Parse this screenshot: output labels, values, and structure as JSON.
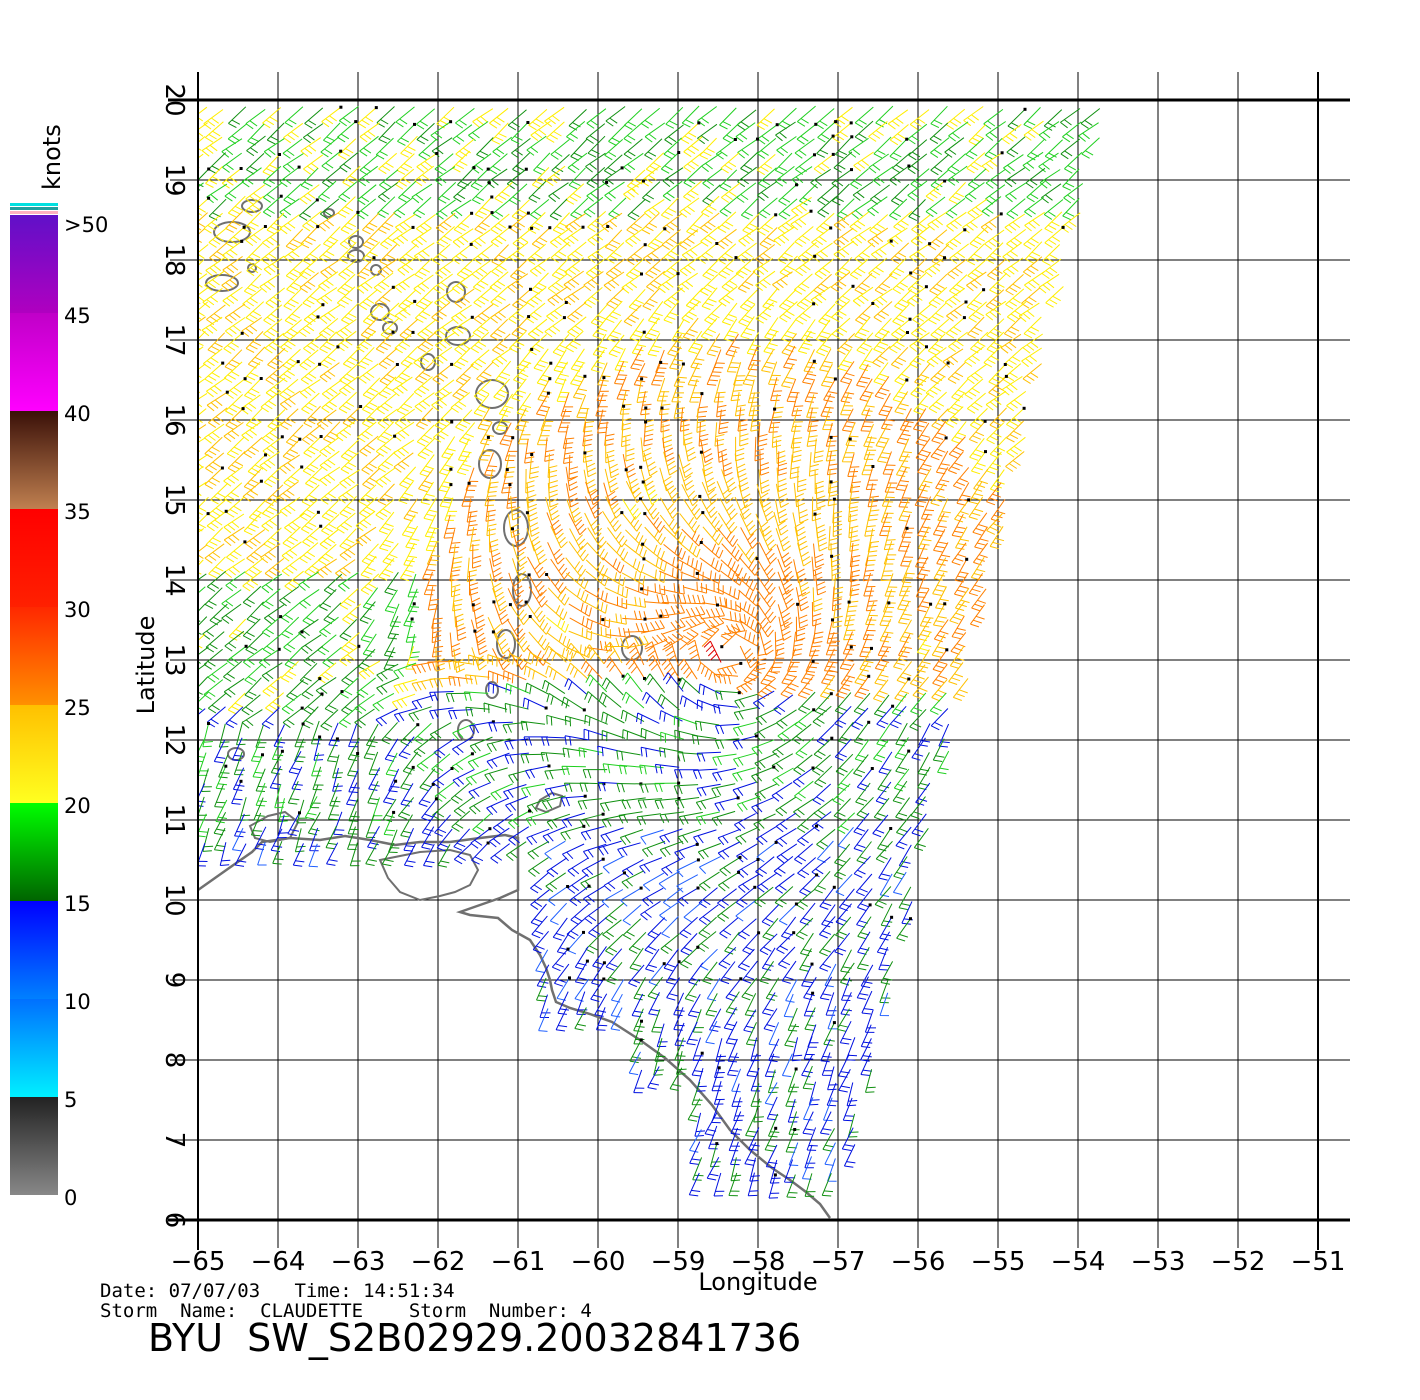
{
  "legend": {
    "unit": "knots",
    "labels": [
      "0",
      "5",
      "10",
      "15",
      "20",
      "25",
      "30",
      "35",
      "40",
      "45",
      ">50"
    ],
    "bands": [
      {
        "from": 0,
        "to": 5,
        "c1": "#888888",
        "c2": "#222222"
      },
      {
        "from": 5,
        "to": 10,
        "c1": "#00f0ff",
        "c2": "#0070ff"
      },
      {
        "from": 10,
        "to": 15,
        "c1": "#0080ff",
        "c2": "#0000ff"
      },
      {
        "from": 15,
        "to": 20,
        "c1": "#006400",
        "c2": "#00ff00"
      },
      {
        "from": 20,
        "to": 25,
        "c1": "#ffff20",
        "c2": "#ffc000"
      },
      {
        "from": 25,
        "to": 30,
        "c1": "#ff9000",
        "c2": "#ff2800"
      },
      {
        "from": 30,
        "to": 35,
        "c1": "#ff2000",
        "c2": "#ff0000"
      },
      {
        "from": 35,
        "to": 40,
        "c1": "#c08050",
        "c2": "#3a1008"
      },
      {
        "from": 40,
        "to": 45,
        "c1": "#ff00ff",
        "c2": "#c000c8"
      },
      {
        "from": 45,
        "to": 50,
        "c1": "#b000c0",
        "c2": "#6010c8"
      }
    ],
    "top_stripes": [
      "#ffb0c0",
      "#20a0a0",
      "#00e0e0"
    ]
  },
  "axes": {
    "xlabel": "Longitude",
    "ylabel": "Latitude",
    "xlim": [
      -65,
      -51
    ],
    "ylim": [
      6,
      20
    ],
    "xticks": [
      "-65",
      "-64",
      "-63",
      "-62",
      "-61",
      "-60",
      "-59",
      "-58",
      "-57",
      "-56",
      "-55",
      "-54",
      "-53",
      "-52",
      "-51"
    ],
    "yticks": [
      "6",
      "7",
      "8",
      "9",
      "10",
      "11",
      "12",
      "13",
      "14",
      "15",
      "16",
      "17",
      "18",
      "19",
      "20"
    ]
  },
  "storm": {
    "center_lon": -58.3,
    "center_lat": 13.1
  },
  "info": {
    "date_line": "Date: 07/07/03   Time: 14:51:34",
    "storm_line": "Storm  Name:  CLAUDETTE    Storm  Number: 4",
    "file_id": "BYU  SW_S2B02929.20032841736"
  },
  "colors": {
    "coast": "#707070",
    "grid": "#000000"
  }
}
